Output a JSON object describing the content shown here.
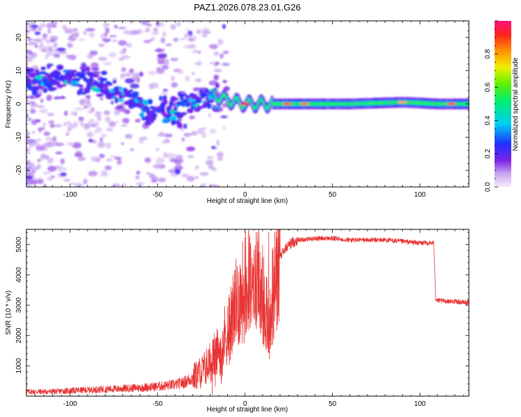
{
  "title": "PAZ1.2026.078.23.01.G26",
  "chart_data": [
    {
      "type": "heatmap",
      "xlabel": "Height of straight line (km)",
      "ylabel": "Frequency (Hz)",
      "xlim": [
        -125,
        128
      ],
      "ylim": [
        -25,
        25
      ],
      "xticks": [
        -100,
        -50,
        0,
        50,
        100
      ],
      "yticks": [
        -20,
        -10,
        0,
        10,
        20
      ],
      "colorbar": {
        "label": "Normalized spectral amplitude",
        "ticks": [
          0.0,
          0.2,
          0.4,
          0.6,
          0.8
        ],
        "range": [
          0,
          1
        ],
        "colormap": "rainbow (purple-blue-cyan-green-yellow-orange-red-magenta)"
      },
      "ridge": [
        {
          "x": -120,
          "f": 7
        },
        {
          "x": -110,
          "f": 7
        },
        {
          "x": -100,
          "f": 8
        },
        {
          "x": -90,
          "f": 7
        },
        {
          "x": -80,
          "f": 5
        },
        {
          "x": -70,
          "f": 3
        },
        {
          "x": -60,
          "f": 0
        },
        {
          "x": -55,
          "f": -2
        },
        {
          "x": -50,
          "f": -3
        },
        {
          "x": -45,
          "f": -2
        },
        {
          "x": -40,
          "f": -1
        },
        {
          "x": -30,
          "f": 0
        },
        {
          "x": -20,
          "f": 3
        },
        {
          "x": -15,
          "f": 2
        },
        {
          "x": -10,
          "f": 1
        },
        {
          "x": 0,
          "f": 0
        },
        {
          "x": 10,
          "f": 0
        },
        {
          "x": 30,
          "f": 0
        },
        {
          "x": 60,
          "f": 0
        },
        {
          "x": 90,
          "f": 0.5
        },
        {
          "x": 110,
          "f": 0
        },
        {
          "x": 128,
          "f": 0
        }
      ],
      "hotspots": [
        {
          "x": 0,
          "f": 0,
          "amplitude": 0.95
        },
        {
          "x": 24,
          "f": 0,
          "amplitude": 0.9
        },
        {
          "x": 34,
          "f": 0,
          "amplitude": 0.85
        },
        {
          "x": 90,
          "f": 0.5,
          "amplitude": 0.8
        },
        {
          "x": 118,
          "f": 0,
          "amplitude": 0.95
        }
      ]
    },
    {
      "type": "line",
      "xlabel": "Height of straight line (km)",
      "ylabel": "SNR (10 * v/v)",
      "xlim": [
        -125,
        128
      ],
      "ylim": [
        0,
        5500
      ],
      "xticks": [
        -100,
        -50,
        0,
        50,
        100
      ],
      "yticks": [
        1000,
        2000,
        3000,
        4000,
        5000
      ],
      "color": "#e83434",
      "series": [
        {
          "name": "SNR",
          "x": [
            -125,
            -110,
            -100,
            -90,
            -80,
            -70,
            -60,
            -50,
            -45,
            -40,
            -35,
            -30,
            -25,
            -20,
            -15,
            -10,
            -5,
            0,
            3,
            5,
            8,
            10,
            12,
            14,
            16,
            20,
            25,
            30,
            40,
            50,
            60,
            70,
            80,
            90,
            100,
            108,
            109,
            110,
            120,
            128
          ],
          "y": [
            150,
            150,
            180,
            200,
            230,
            250,
            280,
            320,
            350,
            380,
            450,
            600,
            800,
            1100,
            1500,
            2200,
            3000,
            3600,
            4200,
            3800,
            3900,
            3400,
            2800,
            2300,
            3500,
            4600,
            5000,
            5150,
            5200,
            5200,
            5150,
            5150,
            5150,
            5100,
            5050,
            5050,
            3200,
            3150,
            3120,
            3080
          ]
        }
      ]
    }
  ]
}
